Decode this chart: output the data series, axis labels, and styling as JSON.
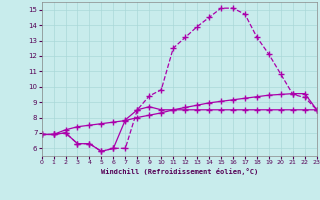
{
  "xlabel": "Windchill (Refroidissement éolien,°C)",
  "background_color": "#c8ecec",
  "line_color": "#aa00aa",
  "xlim": [
    0,
    23
  ],
  "ylim": [
    5.5,
    15.5
  ],
  "xticks": [
    0,
    1,
    2,
    3,
    4,
    5,
    6,
    7,
    8,
    9,
    10,
    11,
    12,
    13,
    14,
    15,
    16,
    17,
    18,
    19,
    20,
    21,
    22,
    23
  ],
  "yticks": [
    6,
    7,
    8,
    9,
    10,
    11,
    12,
    13,
    14,
    15
  ],
  "line1_x": [
    0,
    1,
    2,
    3,
    4,
    5,
    6,
    7,
    8,
    9,
    10,
    11,
    12,
    13,
    14,
    15,
    16,
    17,
    18,
    19,
    20,
    21,
    22,
    23
  ],
  "line1_y": [
    6.9,
    6.9,
    7.0,
    6.3,
    6.3,
    5.8,
    6.0,
    6.0,
    8.5,
    9.4,
    9.8,
    12.5,
    13.2,
    13.9,
    14.5,
    15.1,
    15.1,
    14.7,
    13.2,
    12.1,
    10.8,
    9.5,
    9.3,
    8.5
  ],
  "line2_x": [
    0,
    1,
    2,
    3,
    4,
    5,
    6,
    7,
    8,
    9,
    10,
    11,
    12,
    13,
    14,
    15,
    16,
    17,
    18,
    19,
    20,
    21,
    22,
    23
  ],
  "line2_y": [
    6.9,
    6.9,
    7.2,
    7.4,
    7.5,
    7.6,
    7.7,
    7.8,
    8.0,
    8.15,
    8.3,
    8.5,
    8.65,
    8.8,
    8.95,
    9.05,
    9.15,
    9.25,
    9.35,
    9.45,
    9.5,
    9.55,
    9.55,
    8.5
  ],
  "line3_x": [
    0,
    1,
    2,
    3,
    4,
    5,
    6,
    7,
    8,
    9,
    10,
    11,
    12,
    13,
    14,
    15,
    16,
    17,
    18,
    19,
    20,
    21,
    22,
    23
  ],
  "line3_y": [
    6.9,
    6.9,
    7.0,
    6.3,
    6.3,
    5.8,
    6.0,
    7.85,
    8.5,
    8.7,
    8.5,
    8.5,
    8.5,
    8.5,
    8.5,
    8.5,
    8.5,
    8.5,
    8.5,
    8.5,
    8.5,
    8.5,
    8.5,
    8.5
  ],
  "grid_color": "#aad8d8",
  "spine_color": "#888888"
}
